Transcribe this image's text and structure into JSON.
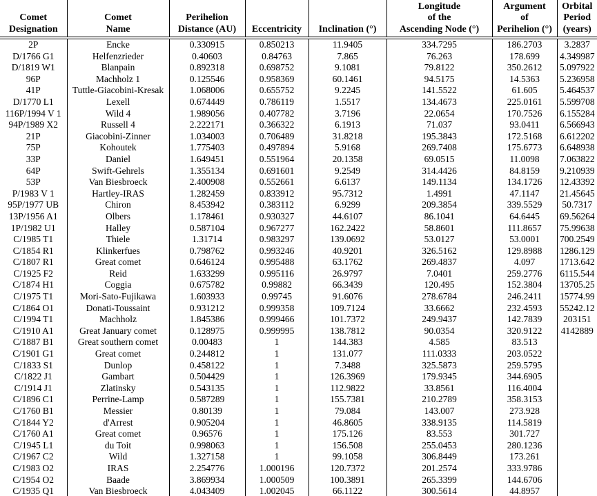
{
  "colors": {
    "text": "#000000",
    "background": "#ffffff",
    "rule": "#000000"
  },
  "table": {
    "headers": [
      {
        "key": "designation",
        "lines": [
          "Comet",
          "Designation"
        ]
      },
      {
        "key": "name",
        "lines": [
          "Comet",
          "Name"
        ]
      },
      {
        "key": "perihelion-distance",
        "lines": [
          "Perihelion",
          "Distance (AU)"
        ]
      },
      {
        "key": "eccentricity",
        "lines": [
          "Eccentricity"
        ]
      },
      {
        "key": "inclination",
        "lines": [
          "Inclination (°)"
        ]
      },
      {
        "key": "ascending-node",
        "lines": [
          "Longitude",
          "of the",
          "Ascending Node (°)"
        ]
      },
      {
        "key": "argument-perihelion",
        "lines": [
          "Argument",
          "of",
          "Perihelion (°)"
        ]
      },
      {
        "key": "orbital-period",
        "lines": [
          "Orbital",
          "Period",
          "(years)"
        ]
      }
    ],
    "rows": [
      [
        "2P",
        "Encke",
        "0.330915",
        "0.850213",
        "11.9405",
        "334.7295",
        "186.2703",
        "3.2837"
      ],
      [
        "D/1766 G1",
        "Helfenzrieder",
        "0.40603",
        "0.84763",
        "7.865",
        "76.263",
        "178.699",
        "4.349987"
      ],
      [
        "D/1819 W1",
        "Blanpain",
        "0.892318",
        "0.698752",
        "9.1081",
        "79.8122",
        "350.2612",
        "5.097922"
      ],
      [
        "96P",
        "Machholz 1",
        "0.125546",
        "0.958369",
        "60.1461",
        "94.5175",
        "14.5363",
        "5.236958"
      ],
      [
        "41P",
        "Tuttle-Giacobini-Kresak",
        "1.068006",
        "0.655752",
        "9.2245",
        "141.5522",
        "61.605",
        "5.464537"
      ],
      [
        "D/1770 L1",
        "Lexell",
        "0.674449",
        "0.786119",
        "1.5517",
        "134.4673",
        "225.0161",
        "5.599708"
      ],
      [
        "116P/1994 V 1",
        "Wild 4",
        "1.989056",
        "0.407782",
        "3.7196",
        "22.0654",
        "170.7526",
        "6.155284"
      ],
      [
        "94P/1989 X2",
        "Russell 4",
        "2.222171",
        "0.366322",
        "6.1913",
        "71.037",
        "93.0411",
        "6.566943"
      ],
      [
        "21P",
        "Giacobini-Zinner",
        "1.034003",
        "0.706489",
        "31.8218",
        "195.3843",
        "172.5168",
        "6.612202"
      ],
      [
        "75P",
        "Kohoutek",
        "1.775403",
        "0.497894",
        "5.9168",
        "269.7408",
        "175.6773",
        "6.648938"
      ],
      [
        "33P",
        "Daniel",
        "1.649451",
        "0.551964",
        "20.1358",
        "69.0515",
        "11.0098",
        "7.063822"
      ],
      [
        "64P",
        "Swift-Gehrels",
        "1.355134",
        "0.691601",
        "9.2549",
        "314.4426",
        "84.8159",
        "9.210939"
      ],
      [
        "53P",
        "Van Biesbroeck",
        "2.400908",
        "0.552661",
        "6.6137",
        "149.1134",
        "134.1726",
        "12.43392"
      ],
      [
        "P/1983 V 1",
        "Hartley-IRAS",
        "1.282459",
        "0.833912",
        "95.7312",
        "1.4991",
        "47.1147",
        "21.45645"
      ],
      [
        "95P/1977 UB",
        "Chiron",
        "8.453942",
        "0.383112",
        "6.9299",
        "209.3854",
        "339.5529",
        "50.7317"
      ],
      [
        "13P/1956 A1",
        "Olbers",
        "1.178461",
        "0.930327",
        "44.6107",
        "86.1041",
        "64.6445",
        "69.56264"
      ],
      [
        "1P/1982 U1",
        "Halley",
        "0.587104",
        "0.967277",
        "162.2422",
        "58.8601",
        "111.8657",
        "75.99638"
      ],
      [
        "C/1985 T1",
        "Thiele",
        "1.31714",
        "0.983297",
        "139.0692",
        "53.0127",
        "53.0001",
        "700.2549"
      ],
      [
        "C/1854 R1",
        "Klinkerfues",
        "0.798762",
        "0.993246",
        "40.9201",
        "326.5162",
        "129.8988",
        "1286.129"
      ],
      [
        "C/1807 R1",
        "Great comet",
        "0.646124",
        "0.995488",
        "63.1762",
        "269.4837",
        "4.097",
        "1713.642"
      ],
      [
        "C/1925 F2",
        "Reid",
        "1.633299",
        "0.995116",
        "26.9797",
        "7.0401",
        "259.2776",
        "6115.544"
      ],
      [
        "C/1874 H1",
        "Coggia",
        "0.675782",
        "0.99882",
        "66.3439",
        "120.495",
        "152.3804",
        "13705.25"
      ],
      [
        "C/1975 T1",
        "Mori-Sato-Fujikawa",
        "1.603933",
        "0.99745",
        "91.6076",
        "278.6784",
        "246.2411",
        "15774.99"
      ],
      [
        "C/1864 O1",
        "Donati-Toussaint",
        "0.931212",
        "0.999358",
        "109.7124",
        "33.6662",
        "232.4593",
        "55242.12"
      ],
      [
        "C/1994 T1",
        "Machholz",
        "1.845386",
        "0.999466",
        "101.7372",
        "249.9437",
        "142.7839",
        "203151"
      ],
      [
        "C/1910 A1",
        "Great January comet",
        "0.128975",
        "0.999995",
        "138.7812",
        "90.0354",
        "320.9122",
        "4142889"
      ],
      [
        "C/1887 B1",
        "Great southern comet",
        "0.00483",
        "1",
        "144.383",
        "4.585",
        "83.513",
        ""
      ],
      [
        "C/1901 G1",
        "Great comet",
        "0.244812",
        "1",
        "131.077",
        "111.0333",
        "203.0522",
        ""
      ],
      [
        "C/1833 S1",
        "Dunlop",
        "0.458122",
        "1",
        "7.3488",
        "325.5873",
        "259.5795",
        ""
      ],
      [
        "C/1822 J1",
        "Gambart",
        "0.504429",
        "1",
        "126.3969",
        "179.9345",
        "344.6905",
        ""
      ],
      [
        "C/1914 J1",
        "Zlatinsky",
        "0.543135",
        "1",
        "112.9822",
        "33.8561",
        "116.4004",
        ""
      ],
      [
        "C/1896 C1",
        "Perrine-Lamp",
        "0.587289",
        "1",
        "155.7381",
        "210.2789",
        "358.3153",
        ""
      ],
      [
        "C/1760 B1",
        "Messier",
        "0.80139",
        "1",
        "79.084",
        "143.007",
        "273.928",
        ""
      ],
      [
        "C/1844 Y2",
        "d'Arrest",
        "0.905204",
        "1",
        "46.8605",
        "338.9135",
        "114.5819",
        ""
      ],
      [
        "C/1760 A1",
        "Great comet",
        "0.96576",
        "1",
        "175.126",
        "83.553",
        "301.727",
        ""
      ],
      [
        "C/1945 L1",
        "du Toit",
        "0.998063",
        "1",
        "156.508",
        "255.0453",
        "280.1236",
        ""
      ],
      [
        "C/1967 C2",
        "Wild",
        "1.327158",
        "1",
        "99.1058",
        "306.8449",
        "173.261",
        ""
      ],
      [
        "C/1983 O2",
        "IRAS",
        "2.254776",
        "1.000196",
        "120.7372",
        "201.2574",
        "333.9786",
        ""
      ],
      [
        "C/1954 O2",
        "Baade",
        "3.869934",
        "1.000509",
        "100.3891",
        "265.3399",
        "144.6706",
        ""
      ],
      [
        "C/1935 Q1",
        "Van Biesbroeck",
        "4.043409",
        "1.002045",
        "66.1122",
        "300.5614",
        "44.8957",
        ""
      ]
    ]
  }
}
